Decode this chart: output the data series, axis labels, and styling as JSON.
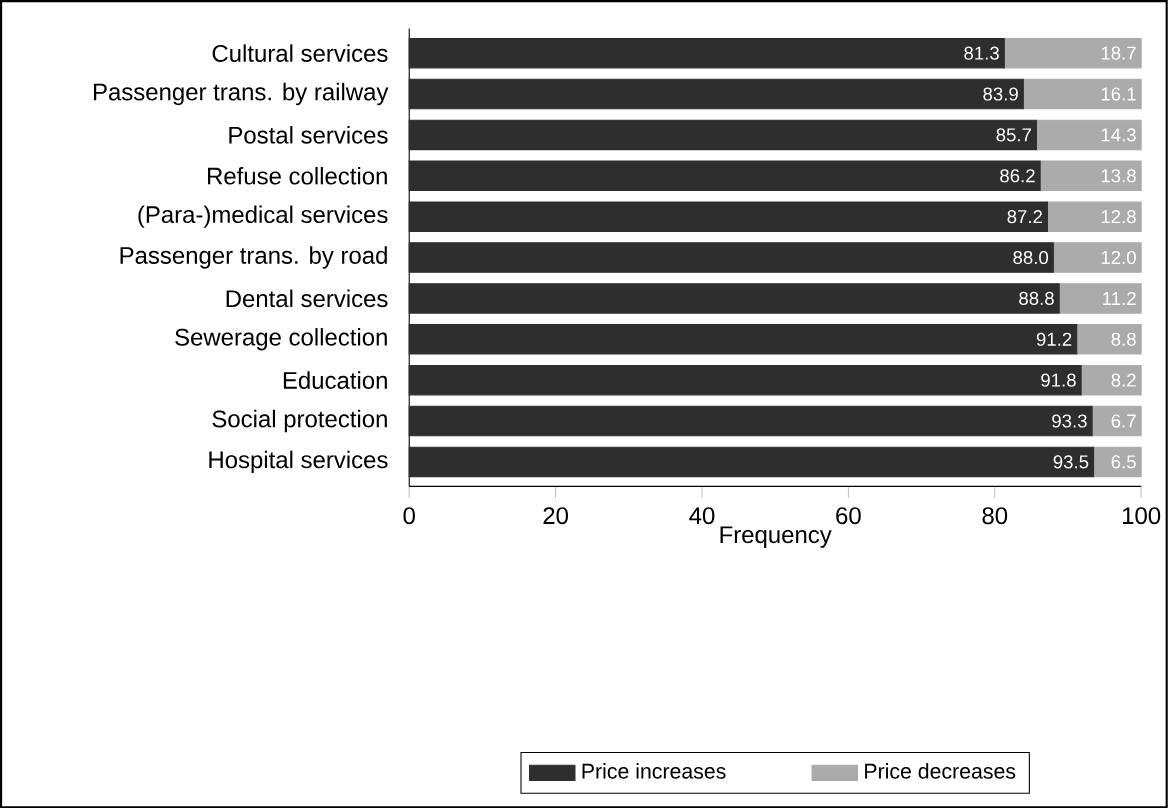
{
  "chart_data": {
    "type": "bar",
    "orientation": "horizontal",
    "stacked": true,
    "categories": [
      "Cultural services",
      "Passenger trans. by railway",
      "Postal services",
      "Refuse collection",
      "(Para-)medical services",
      "Passenger trans. by road",
      "Dental services",
      "Sewerage collection",
      "Education",
      "Social protection",
      "Hospital services"
    ],
    "series": [
      {
        "name": "Price increases",
        "color": "#2e2e2e",
        "values": [
          81.3,
          83.9,
          85.7,
          86.2,
          87.2,
          88.0,
          88.8,
          91.2,
          91.8,
          93.3,
          93.5
        ],
        "value_labels": [
          "81.3",
          "83.9",
          "85.7",
          "86.2",
          "87.2",
          "88.0",
          "88.8",
          "91.2",
          "91.8",
          "93.3",
          "93.5"
        ]
      },
      {
        "name": "Price decreases",
        "color": "#ababab",
        "values": [
          18.7,
          16.1,
          14.3,
          13.8,
          12.8,
          12.0,
          11.2,
          8.8,
          8.2,
          6.7,
          6.5
        ],
        "value_labels": [
          "18.7",
          "16.1",
          "14.3",
          "13.8",
          "12.8",
          "12.0",
          "11.2",
          "8.8",
          "8.2",
          "6.7",
          "6.5"
        ]
      }
    ],
    "xlim": [
      0,
      100
    ],
    "xticks": [
      0,
      20,
      40,
      60,
      80,
      100
    ],
    "xlabel": "Frequency",
    "legend": "bottom"
  }
}
